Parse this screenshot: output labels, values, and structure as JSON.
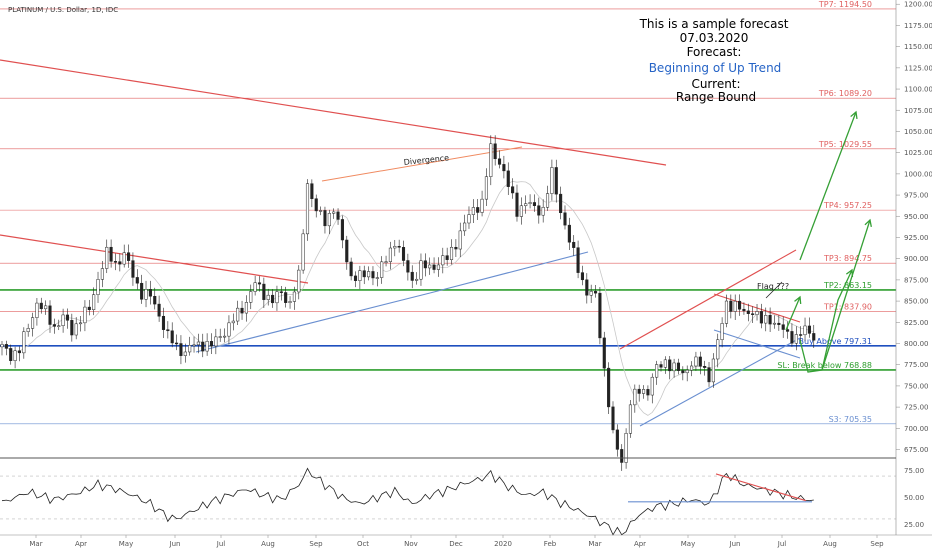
{
  "chart_data": {
    "type": "candlestick",
    "symbol_label": "PLATINUM / U.S. Dollar, 1D, IDC",
    "forecast_box": {
      "line1": "This is a sample forecast",
      "line2": "07.03.2020",
      "line3": "Forecast:",
      "line4": "Beginning of Up Trend",
      "line5": "Current:",
      "line6": "Range Bound"
    },
    "annotations": {
      "divergence": "Divergence",
      "flag": "Flag ???"
    },
    "ylim": [
      665,
      1205
    ],
    "yticks": [
      675,
      700,
      725,
      750,
      775,
      800,
      825,
      850,
      875,
      900,
      925,
      950,
      975,
      1000,
      1025,
      1050,
      1075,
      1100,
      1125,
      1150,
      1175,
      1200
    ],
    "ytick_labels": [
      "675.00",
      "700.00",
      "725.00",
      "750.00",
      "775.00",
      "800.00",
      "825.00",
      "850.00",
      "875.00",
      "900.00",
      "925.00",
      "950.00",
      "975.00",
      "1000.00",
      "1025.00",
      "1050.00",
      "1075.00",
      "1100.00",
      "1125.00",
      "1150.00",
      "1175.00",
      "1200.00"
    ],
    "xticks": [
      "Mar",
      "Apr",
      "May",
      "Jun",
      "Jul",
      "Aug",
      "Sep",
      "Oct",
      "Nov",
      "Dec",
      "2020",
      "Feb",
      "Mar",
      "Apr",
      "May",
      "Jun",
      "Jul",
      "Aug",
      "Sep"
    ],
    "levels": [
      {
        "label": "TP7: 1194.50",
        "value": 1194.5,
        "color": "#e06060",
        "kind": "thin"
      },
      {
        "label": "TP6: 1089.20",
        "value": 1089.2,
        "color": "#e06060",
        "kind": "thin"
      },
      {
        "label": "TP5: 1029.55",
        "value": 1029.55,
        "color": "#e06060",
        "kind": "thin"
      },
      {
        "label": "TP4: 957.25",
        "value": 957.25,
        "color": "#e06060",
        "kind": "thin"
      },
      {
        "label": "TP3: 894.75",
        "value": 894.75,
        "color": "#e06060",
        "kind": "thin"
      },
      {
        "label": "TP2: 863.15",
        "value": 863.15,
        "color": "#2e9e2e",
        "kind": "green"
      },
      {
        "label": "TP1: 837.90",
        "value": 837.9,
        "color": "#e06060",
        "kind": "thin"
      },
      {
        "label": "Buy Above 797.31",
        "value": 797.31,
        "color": "#1f4fbf",
        "kind": "blue"
      },
      {
        "label": "SL: Break below 768.88",
        "value": 768.88,
        "color": "#2e9e2e",
        "kind": "green"
      },
      {
        "label": "S3: 705.35",
        "value": 705.35,
        "color": "#6a8fd0",
        "kind": "thin"
      }
    ],
    "price_anchors": [
      [
        0,
        795
      ],
      [
        2,
        787
      ],
      [
        4,
        792
      ],
      [
        6,
        820
      ],
      [
        8,
        848
      ],
      [
        10,
        836
      ],
      [
        12,
        820
      ],
      [
        14,
        830
      ],
      [
        16,
        815
      ],
      [
        18,
        830
      ],
      [
        20,
        840
      ],
      [
        22,
        878
      ],
      [
        24,
        905
      ],
      [
        26,
        895
      ],
      [
        28,
        905
      ],
      [
        30,
        880
      ],
      [
        32,
        860
      ],
      [
        34,
        855
      ],
      [
        36,
        835
      ],
      [
        38,
        808
      ],
      [
        40,
        796
      ],
      [
        42,
        790
      ],
      [
        44,
        798
      ],
      [
        46,
        800
      ],
      [
        48,
        797
      ],
      [
        50,
        810
      ],
      [
        52,
        820
      ],
      [
        54,
        835
      ],
      [
        56,
        850
      ],
      [
        58,
        870
      ],
      [
        60,
        860
      ],
      [
        62,
        850
      ],
      [
        64,
        860
      ],
      [
        66,
        848
      ],
      [
        68,
        878
      ],
      [
        70,
        990
      ],
      [
        72,
        955
      ],
      [
        74,
        945
      ],
      [
        76,
        960
      ],
      [
        78,
        920
      ],
      [
        80,
        880
      ],
      [
        82,
        877
      ],
      [
        84,
        885
      ],
      [
        86,
        878
      ],
      [
        88,
        900
      ],
      [
        90,
        922
      ],
      [
        92,
        895
      ],
      [
        94,
        875
      ],
      [
        96,
        890
      ],
      [
        98,
        890
      ],
      [
        100,
        895
      ],
      [
        102,
        900
      ],
      [
        104,
        920
      ],
      [
        106,
        940
      ],
      [
        108,
        960
      ],
      [
        110,
        965
      ],
      [
        112,
        1030
      ],
      [
        114,
        1015
      ],
      [
        116,
        985
      ],
      [
        118,
        958
      ],
      [
        120,
        965
      ],
      [
        122,
        960
      ],
      [
        124,
        958
      ],
      [
        126,
        1000
      ],
      [
        128,
        958
      ],
      [
        130,
        920
      ],
      [
        132,
        890
      ],
      [
        134,
        860
      ],
      [
        136,
        855
      ],
      [
        138,
        770
      ],
      [
        140,
        690
      ],
      [
        142,
        662
      ],
      [
        144,
        730
      ],
      [
        146,
        745
      ],
      [
        148,
        745
      ],
      [
        150,
        770
      ],
      [
        152,
        780
      ],
      [
        154,
        770
      ],
      [
        156,
        765
      ],
      [
        158,
        778
      ],
      [
        160,
        775
      ],
      [
        162,
        762
      ],
      [
        164,
        800
      ],
      [
        166,
        848
      ],
      [
        168,
        845
      ],
      [
        170,
        835
      ],
      [
        172,
        840
      ],
      [
        174,
        825
      ],
      [
        176,
        830
      ],
      [
        178,
        820
      ],
      [
        180,
        810
      ],
      [
        182,
        808
      ],
      [
        184,
        815
      ],
      [
        186,
        810
      ]
    ],
    "indicator": {
      "name": "RSI",
      "ylim": [
        15,
        85
      ],
      "yticks": [
        25,
        50,
        75
      ],
      "ytick_labels": [
        "25.00",
        "50.00",
        "75.00"
      ],
      "guides": [
        30,
        70
      ],
      "values": [
        [
          0,
          45
        ],
        [
          6,
          55
        ],
        [
          12,
          48
        ],
        [
          18,
          55
        ],
        [
          22,
          62
        ],
        [
          26,
          58
        ],
        [
          30,
          52
        ],
        [
          34,
          44
        ],
        [
          38,
          32
        ],
        [
          40,
          30
        ],
        [
          44,
          38
        ],
        [
          48,
          46
        ],
        [
          52,
          52
        ],
        [
          56,
          58
        ],
        [
          60,
          52
        ],
        [
          64,
          48
        ],
        [
          68,
          62
        ],
        [
          70,
          75
        ],
        [
          74,
          62
        ],
        [
          78,
          50
        ],
        [
          82,
          44
        ],
        [
          86,
          50
        ],
        [
          90,
          56
        ],
        [
          94,
          44
        ],
        [
          98,
          52
        ],
        [
          102,
          57
        ],
        [
          106,
          63
        ],
        [
          110,
          68
        ],
        [
          112,
          72
        ],
        [
          116,
          60
        ],
        [
          120,
          52
        ],
        [
          124,
          55
        ],
        [
          128,
          45
        ],
        [
          132,
          38
        ],
        [
          136,
          30
        ],
        [
          140,
          20
        ],
        [
          142,
          16
        ],
        [
          146,
          34
        ],
        [
          150,
          42
        ],
        [
          154,
          44
        ],
        [
          158,
          48
        ],
        [
          162,
          44
        ],
        [
          166,
          72
        ],
        [
          170,
          62
        ],
        [
          174,
          58
        ],
        [
          178,
          54
        ],
        [
          182,
          50
        ],
        [
          186,
          47
        ]
      ]
    }
  }
}
